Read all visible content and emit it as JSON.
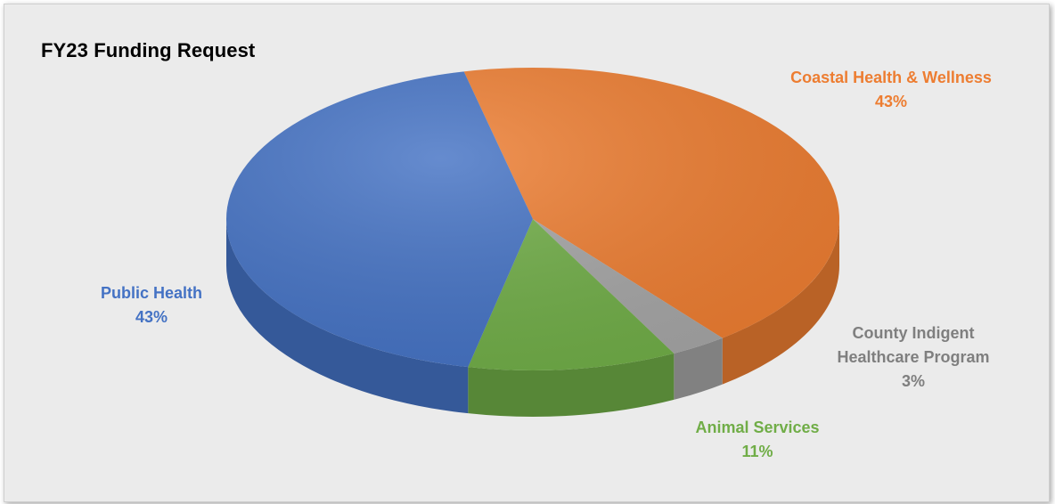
{
  "chart_data": {
    "type": "pie",
    "title": "FY23 Funding Request",
    "slices": [
      {
        "name": "Coastal Health & Wellness",
        "value": 43,
        "label": "43%",
        "color": "#ED7D31"
      },
      {
        "name": "County Indigent Healthcare Program",
        "value": 3,
        "label": "3%",
        "color": "#A5A5A5"
      },
      {
        "name": "Animal Services",
        "value": 11,
        "label": "11%",
        "color": "#70AD47"
      },
      {
        "name": "Public Health",
        "value": 43,
        "label": "43%",
        "color": "#4472C4"
      }
    ],
    "style": "3d"
  }
}
